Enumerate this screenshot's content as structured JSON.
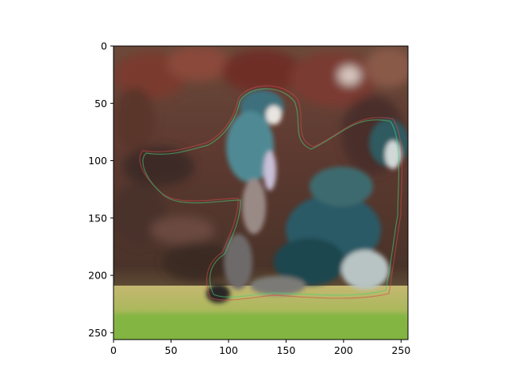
{
  "figure": {
    "kind": "image display with pixel-index axes",
    "image_description": "Blurred reconstructed photo of a baseball play: a batter in a teal/blue uniform swinging in the center, a crouched catcher and umpire at lower right, dark reddish crowd/stands in the background, and a green-yellow field strip along the bottom, with faint colored contour outlines around the figures."
  },
  "chart_data": {
    "type": "image",
    "image_size": [
      256,
      256
    ],
    "xlim": [
      0,
      256
    ],
    "ylim": [
      256,
      0
    ],
    "x_ticks": [
      0,
      50,
      100,
      150,
      200,
      250
    ],
    "y_ticks": [
      0,
      50,
      100,
      150,
      200,
      250
    ],
    "x_tick_labels": [
      "0",
      "50",
      "100",
      "150",
      "200",
      "250"
    ],
    "y_tick_labels": [
      "0",
      "50",
      "100",
      "150",
      "200",
      "250"
    ],
    "y_inverted": true,
    "grid": false,
    "title": "",
    "xlabel": "",
    "ylabel": ""
  },
  "colors": {
    "background_stands": "#5a3a2e",
    "crowd_red": "#7a3026",
    "batter_uniform": "#3f7a86",
    "catcher_uniform": "#2c5a63",
    "field_grass": "#8fb44a",
    "field_dirt": "#b9b06a",
    "axis": "#000000"
  }
}
